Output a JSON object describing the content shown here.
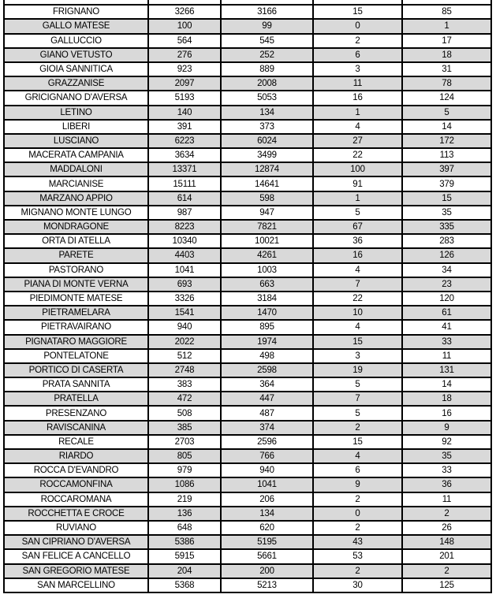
{
  "colors": {
    "border": "#000000",
    "text": "#000000",
    "row_bg": "#ffffff",
    "row_alt_bg": "#d9d9d9"
  },
  "table": {
    "rows": [
      {
        "name": "FRIGNANO",
        "values": [
          "3266",
          "3166",
          "15",
          "85"
        ]
      },
      {
        "name": "GALLO MATESE",
        "values": [
          "100",
          "99",
          "0",
          "1"
        ]
      },
      {
        "name": "GALLUCCIO",
        "values": [
          "564",
          "545",
          "2",
          "17"
        ]
      },
      {
        "name": "GIANO VETUSTO",
        "values": [
          "276",
          "252",
          "6",
          "18"
        ]
      },
      {
        "name": "GIOIA SANNITICA",
        "values": [
          "923",
          "889",
          "3",
          "31"
        ]
      },
      {
        "name": "GRAZZANISE",
        "values": [
          "2097",
          "2008",
          "11",
          "78"
        ]
      },
      {
        "name": "GRICIGNANO D'AVERSA",
        "values": [
          "5193",
          "5053",
          "16",
          "124"
        ]
      },
      {
        "name": "LETINO",
        "values": [
          "140",
          "134",
          "1",
          "5"
        ]
      },
      {
        "name": "LIBERI",
        "values": [
          "391",
          "373",
          "4",
          "14"
        ]
      },
      {
        "name": "LUSCIANO",
        "values": [
          "6223",
          "6024",
          "27",
          "172"
        ]
      },
      {
        "name": "MACERATA CAMPANIA",
        "values": [
          "3634",
          "3499",
          "22",
          "113"
        ]
      },
      {
        "name": "MADDALONI",
        "values": [
          "13371",
          "12874",
          "100",
          "397"
        ]
      },
      {
        "name": "MARCIANISE",
        "values": [
          "15111",
          "14641",
          "91",
          "379"
        ]
      },
      {
        "name": "MARZANO APPIO",
        "values": [
          "614",
          "598",
          "1",
          "15"
        ]
      },
      {
        "name": "MIGNANO MONTE LUNGO",
        "values": [
          "987",
          "947",
          "5",
          "35"
        ]
      },
      {
        "name": "MONDRAGONE",
        "values": [
          "8223",
          "7821",
          "67",
          "335"
        ]
      },
      {
        "name": "ORTA DI ATELLA",
        "values": [
          "10340",
          "10021",
          "36",
          "283"
        ]
      },
      {
        "name": "PARETE",
        "values": [
          "4403",
          "4261",
          "16",
          "126"
        ]
      },
      {
        "name": "PASTORANO",
        "values": [
          "1041",
          "1003",
          "4",
          "34"
        ]
      },
      {
        "name": "PIANA DI MONTE VERNA",
        "values": [
          "693",
          "663",
          "7",
          "23"
        ]
      },
      {
        "name": "PIEDIMONTE MATESE",
        "values": [
          "3326",
          "3184",
          "22",
          "120"
        ]
      },
      {
        "name": "PIETRAMELARA",
        "values": [
          "1541",
          "1470",
          "10",
          "61"
        ]
      },
      {
        "name": "PIETRAVAIRANO",
        "values": [
          "940",
          "895",
          "4",
          "41"
        ]
      },
      {
        "name": "PIGNATARO MAGGIORE",
        "values": [
          "2022",
          "1974",
          "15",
          "33"
        ]
      },
      {
        "name": "PONTELATONE",
        "values": [
          "512",
          "498",
          "3",
          "11"
        ]
      },
      {
        "name": "PORTICO DI CASERTA",
        "values": [
          "2748",
          "2598",
          "19",
          "131"
        ]
      },
      {
        "name": "PRATA SANNITA",
        "values": [
          "383",
          "364",
          "5",
          "14"
        ]
      },
      {
        "name": "PRATELLA",
        "values": [
          "472",
          "447",
          "7",
          "18"
        ]
      },
      {
        "name": "PRESENZANO",
        "values": [
          "508",
          "487",
          "5",
          "16"
        ]
      },
      {
        "name": "RAVISCANINA",
        "values": [
          "385",
          "374",
          "2",
          "9"
        ]
      },
      {
        "name": "RECALE",
        "values": [
          "2703",
          "2596",
          "15",
          "92"
        ]
      },
      {
        "name": "RIARDO",
        "values": [
          "805",
          "766",
          "4",
          "35"
        ]
      },
      {
        "name": "ROCCA D'EVANDRO",
        "values": [
          "979",
          "940",
          "6",
          "33"
        ]
      },
      {
        "name": "ROCCAMONFINA",
        "values": [
          "1086",
          "1041",
          "9",
          "36"
        ]
      },
      {
        "name": "ROCCAROMANA",
        "values": [
          "219",
          "206",
          "2",
          "11"
        ]
      },
      {
        "name": "ROCCHETTA E CROCE",
        "values": [
          "136",
          "134",
          "0",
          "2"
        ]
      },
      {
        "name": "RUVIANO",
        "values": [
          "648",
          "620",
          "2",
          "26"
        ]
      },
      {
        "name": "SAN CIPRIANO D'AVERSA",
        "values": [
          "5386",
          "5195",
          "43",
          "148"
        ]
      },
      {
        "name": "SAN FELICE A CANCELLO",
        "values": [
          "5915",
          "5661",
          "53",
          "201"
        ]
      },
      {
        "name": "SAN GREGORIO MATESE",
        "values": [
          "204",
          "200",
          "2",
          "2"
        ]
      },
      {
        "name": "SAN MARCELLINO",
        "values": [
          "5368",
          "5213",
          "30",
          "125"
        ]
      }
    ]
  }
}
